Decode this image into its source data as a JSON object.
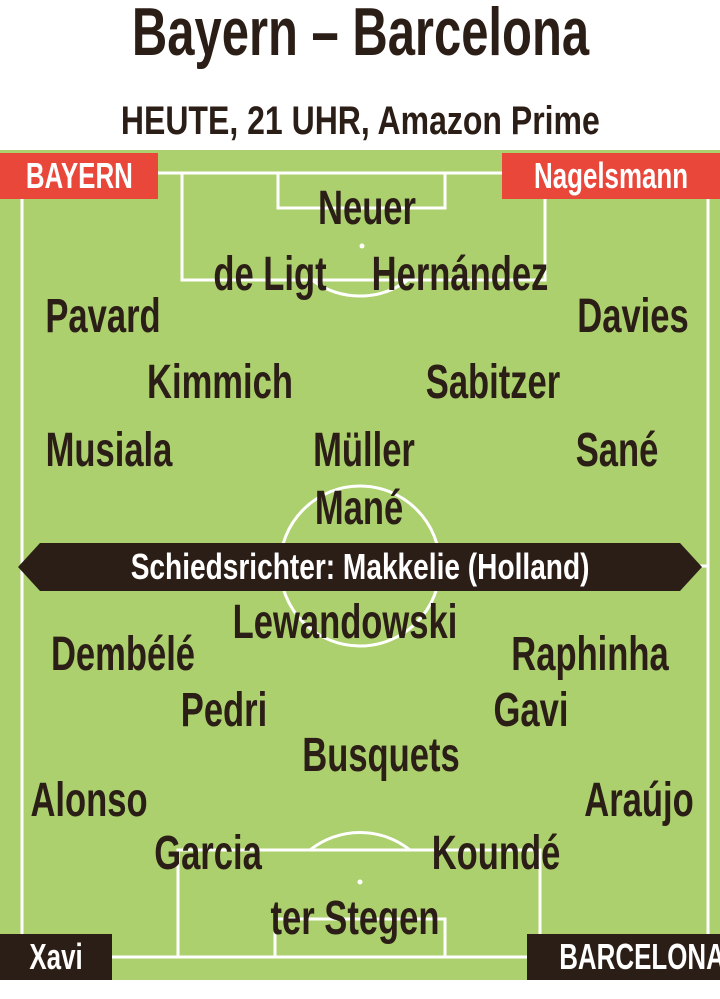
{
  "title": "Bayern – Barcelona",
  "subtitle": {
    "pre": "HEUTE, ",
    "time": "21 UHR,",
    "post": " Amazon Prime"
  },
  "corners": {
    "top_left": "BAYERN",
    "top_right": "Nagelsmann",
    "bottom_left": "Xavi",
    "bottom_right": "BARCELONA"
  },
  "referee": "Schiedsrichter: Makkelie (Holland)",
  "bayern": [
    "Neuer",
    "de Ligt",
    "Hernández",
    "Pavard",
    "Davies",
    "Kimmich",
    "Sabitzer",
    "Musiala",
    "Müller",
    "Sané",
    "Mané"
  ],
  "barcelona": [
    "Lewandowski",
    "Dembélé",
    "Raphinha",
    "Pedri",
    "Gavi",
    "Busquets",
    "Alonso",
    "Araújo",
    "Garcia",
    "Koundé",
    "ter Stegen"
  ],
  "colors": {
    "pitch": "#acd06d",
    "bayern": "#e8473a",
    "barcelona": "#2b1e17",
    "text": "#2b1e17"
  }
}
